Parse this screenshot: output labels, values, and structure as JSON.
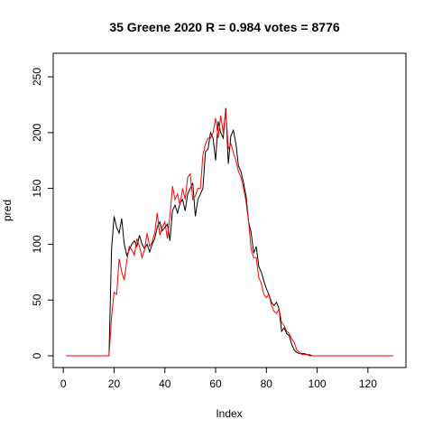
{
  "chart_data": {
    "type": "line",
    "title": "35 Greene 2020 R = 0.984 votes = 8776",
    "xlabel": "Index",
    "ylabel": "pred",
    "xlim": [
      1,
      130
    ],
    "ylim": [
      0,
      250
    ],
    "x_ticks": [
      0,
      20,
      40,
      60,
      80,
      100,
      120
    ],
    "y_ticks": [
      0,
      50,
      100,
      150,
      200,
      250
    ],
    "grid": false,
    "legend": "none",
    "series": [
      {
        "color": "#000000",
        "x": [
          1,
          2,
          3,
          4,
          5,
          6,
          7,
          8,
          9,
          10,
          11,
          12,
          13,
          14,
          15,
          16,
          17,
          18,
          19,
          20,
          21,
          22,
          23,
          24,
          25,
          26,
          27,
          28,
          29,
          30,
          31,
          32,
          33,
          34,
          35,
          36,
          37,
          38,
          39,
          40,
          41,
          42,
          43,
          44,
          45,
          46,
          47,
          48,
          49,
          50,
          51,
          52,
          53,
          54,
          55,
          56,
          57,
          58,
          59,
          60,
          61,
          62,
          63,
          64,
          65,
          66,
          67,
          68,
          69,
          70,
          71,
          72,
          73,
          74,
          75,
          76,
          77,
          78,
          79,
          80,
          81,
          82,
          83,
          84,
          85,
          86,
          87,
          88,
          89,
          90,
          91,
          92,
          93,
          94,
          95,
          96,
          97,
          98,
          99,
          100,
          101,
          102,
          103,
          104,
          105,
          106,
          107,
          108,
          109,
          110,
          111,
          112,
          113,
          114,
          115,
          116,
          117,
          118,
          119,
          120,
          121,
          122,
          123,
          124,
          125,
          126,
          127,
          128,
          129,
          130
        ],
        "y": [
          0,
          0,
          0,
          0,
          0,
          0,
          0,
          0,
          0,
          0,
          0,
          0,
          0,
          0,
          0,
          0,
          0,
          0,
          95,
          125,
          115,
          110,
          123,
          100,
          90,
          95,
          100,
          103,
          98,
          108,
          100,
          96,
          100,
          93,
          100,
          105,
          115,
          120,
          112,
          115,
          118,
          103,
          130,
          135,
          128,
          137,
          140,
          130,
          145,
          150,
          155,
          125,
          140,
          145,
          150,
          183,
          185,
          200,
          195,
          175,
          210,
          200,
          195,
          222,
          172,
          197,
          202,
          190,
          170,
          165,
          155,
          143,
          120,
          110,
          92,
          98,
          80,
          75,
          67,
          60,
          55,
          48,
          45,
          48,
          42,
          22,
          25,
          20,
          18,
          10,
          5,
          3,
          2,
          2,
          2,
          1,
          1,
          0,
          0,
          0,
          0,
          0,
          0,
          0,
          0,
          0,
          0,
          0,
          0,
          0,
          0,
          0,
          0,
          0,
          0,
          0,
          0,
          0,
          0,
          0,
          0,
          0,
          0,
          0,
          0,
          0,
          0,
          0,
          0,
          0
        ]
      },
      {
        "color": "#ff0000",
        "x": [
          1,
          2,
          3,
          4,
          5,
          6,
          7,
          8,
          9,
          10,
          11,
          12,
          13,
          14,
          15,
          16,
          17,
          18,
          19,
          20,
          21,
          22,
          23,
          24,
          25,
          26,
          27,
          28,
          29,
          30,
          31,
          32,
          33,
          34,
          35,
          36,
          37,
          38,
          39,
          40,
          41,
          42,
          43,
          44,
          45,
          46,
          47,
          48,
          49,
          50,
          51,
          52,
          53,
          54,
          55,
          56,
          57,
          58,
          59,
          60,
          61,
          62,
          63,
          64,
          65,
          66,
          67,
          68,
          69,
          70,
          71,
          72,
          73,
          74,
          75,
          76,
          77,
          78,
          79,
          80,
          81,
          82,
          83,
          84,
          85,
          86,
          87,
          88,
          89,
          90,
          91,
          92,
          93,
          94,
          95,
          96,
          97,
          98,
          99,
          100,
          101,
          102,
          103,
          104,
          105,
          106,
          107,
          108,
          109,
          110,
          111,
          112,
          113,
          114,
          115,
          116,
          117,
          118,
          119,
          120,
          121,
          122,
          123,
          124,
          125,
          126,
          127,
          128,
          129,
          130
        ],
        "y": [
          0,
          0,
          0,
          0,
          0,
          0,
          0,
          0,
          0,
          0,
          0,
          0,
          0,
          0,
          0,
          0,
          0,
          0,
          35,
          57,
          55,
          87,
          75,
          68,
          85,
          98,
          95,
          90,
          105,
          98,
          88,
          95,
          110,
          98,
          102,
          110,
          128,
          108,
          115,
          120,
          105,
          125,
          152,
          140,
          145,
          135,
          150,
          140,
          160,
          163,
          140,
          143,
          150,
          150,
          180,
          190,
          195,
          195,
          200,
          213,
          195,
          215,
          200,
          220,
          185,
          190,
          182,
          175,
          165,
          160,
          150,
          138,
          120,
          95,
          88,
          88,
          70,
          65,
          55,
          52,
          55,
          45,
          40,
          38,
          42,
          30,
          27,
          22,
          20,
          15,
          12,
          5,
          3,
          1,
          1,
          1,
          0,
          0,
          0,
          0,
          0,
          0,
          0,
          0,
          0,
          0,
          0,
          0,
          0,
          0,
          0,
          0,
          0,
          0,
          0,
          0,
          0,
          0,
          0,
          0,
          0,
          0,
          0,
          0,
          0,
          0,
          0,
          0,
          0,
          0
        ]
      }
    ]
  }
}
